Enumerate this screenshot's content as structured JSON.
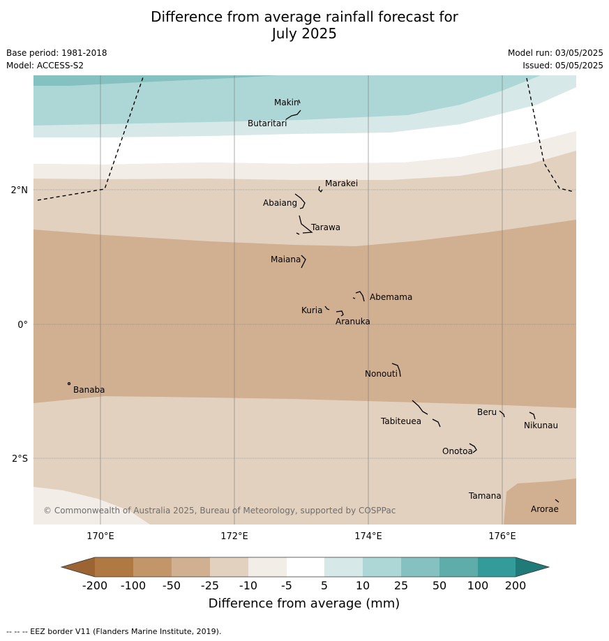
{
  "title": {
    "line1": "Difference from average rainfall forecast for",
    "line2": "July 2025"
  },
  "meta": {
    "base_period": "Base period: 1981-2018",
    "model": "Model: ACCESS-S2",
    "model_run": "Model run: 03/05/2025",
    "issued": "Issued: 05/05/2025"
  },
  "map": {
    "lat_labels": [
      "2°N",
      "0°",
      "2°S"
    ],
    "lon_labels": [
      "170°E",
      "172°E",
      "174°E",
      "176°E"
    ],
    "copyright": "© Commonwealth of Australia 2025, Bureau of Meteorology, supported by COSPPac",
    "places": [
      {
        "name": "Makin"
      },
      {
        "name": "Butaritari"
      },
      {
        "name": "Marakei"
      },
      {
        "name": "Abaiang"
      },
      {
        "name": "Tarawa"
      },
      {
        "name": "Maiana"
      },
      {
        "name": "Abemama"
      },
      {
        "name": "Kuria"
      },
      {
        "name": "Aranuka"
      },
      {
        "name": "Nonouti"
      },
      {
        "name": "Banaba"
      },
      {
        "name": "Beru"
      },
      {
        "name": "Tabiteuea"
      },
      {
        "name": "Nikunau"
      },
      {
        "name": "Onotoa"
      },
      {
        "name": "Tamana"
      },
      {
        "name": "Arorae"
      }
    ]
  },
  "legend": {
    "ticks": [
      "-200",
      "-100",
      "-50",
      "-25",
      "-10",
      "-5",
      "5",
      "10",
      "25",
      "50",
      "100",
      "200"
    ],
    "colors": {
      "below_200": "#9c6432",
      "m200_m100": "#b07843",
      "m100_m50": "#c39669",
      "m50_m25": "#d1b092",
      "m25_m10": "#e3d1c0",
      "m10_m5": "#f2ede7",
      "m5_5": "#ffffff",
      "p5_10": "#d6e9e8",
      "p10_25": "#add7d6",
      "p25_50": "#85c1c0",
      "p50_100": "#5fadab",
      "p100_200": "#339c9a",
      "above_200": "#207a78"
    },
    "label": "Difference from average (mm)"
  },
  "footer": "--  --  -- EEZ border V11 (Flanders Marine Institute, 2019)."
}
